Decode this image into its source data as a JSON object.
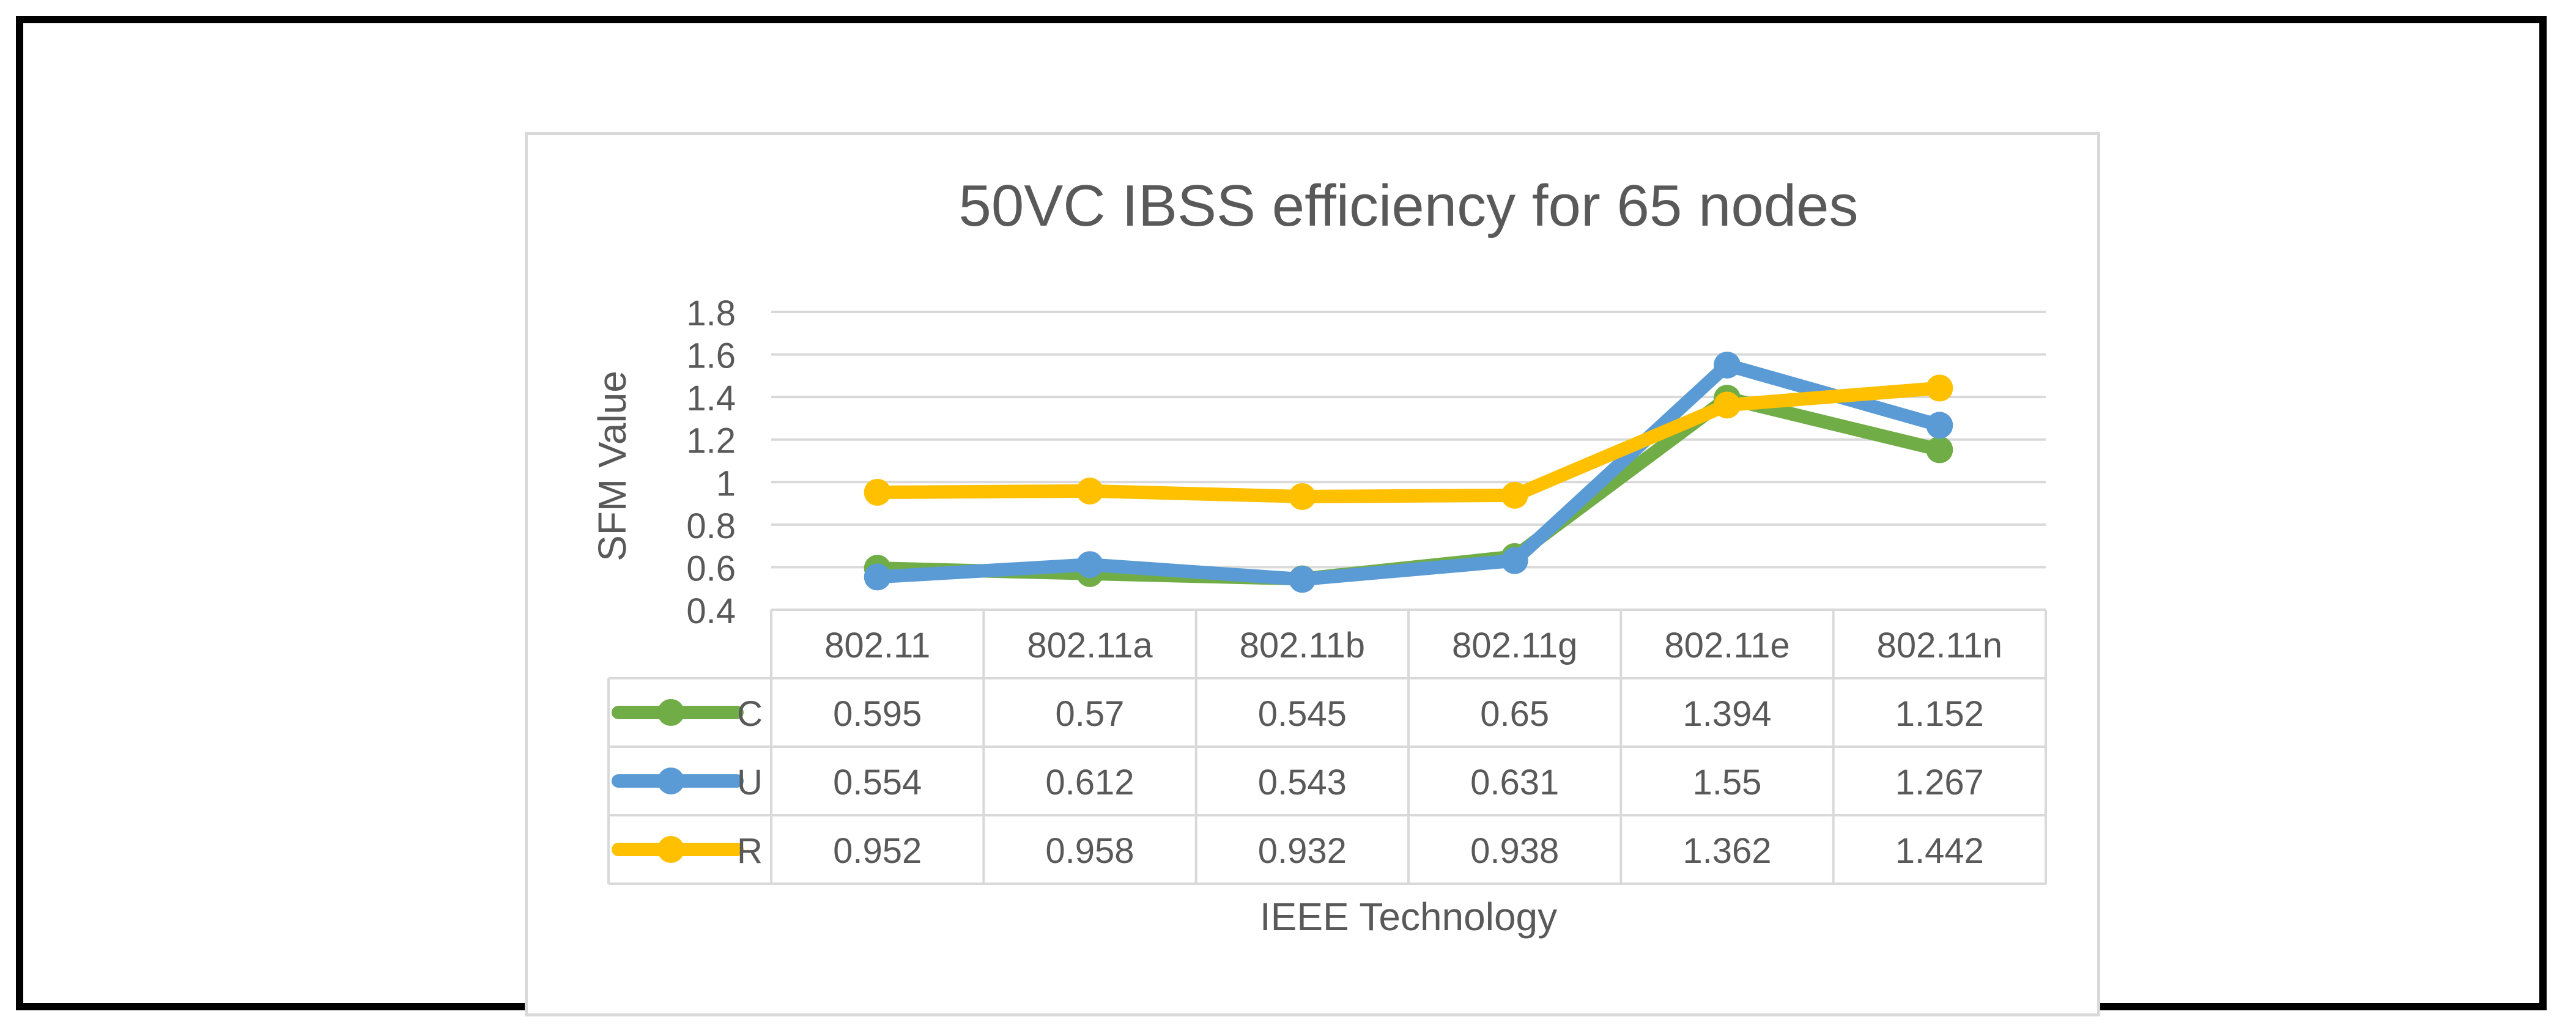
{
  "chart_data": {
    "type": "line",
    "title": "50VC IBSS efficiency for 65 nodes",
    "xlabel": "IEEE Technology",
    "ylabel": "SFM Value",
    "ylim": [
      0.4,
      1.8
    ],
    "y_ticks": [
      "0.4",
      "0.6",
      "0.8",
      "1",
      "1.2",
      "1.4",
      "1.6",
      "1.8"
    ],
    "categories": [
      "802.11",
      "802.11a",
      "802.11b",
      "802.11g",
      "802.11e",
      "802.11n"
    ],
    "series": [
      {
        "name": "C",
        "color": "#70ad47",
        "values": [
          0.595,
          0.57,
          0.545,
          0.65,
          1.394,
          1.152
        ],
        "labels": [
          "0.595",
          "0.57",
          "0.545",
          "0.65",
          "1.394",
          "1.152"
        ]
      },
      {
        "name": "U",
        "color": "#5b9bd5",
        "values": [
          0.554,
          0.612,
          0.543,
          0.631,
          1.55,
          1.267
        ],
        "labels": [
          "0.554",
          "0.612",
          "0.543",
          "0.631",
          "1.55",
          "1.267"
        ]
      },
      {
        "name": "R",
        "color": "#ffc000",
        "values": [
          0.952,
          0.958,
          0.932,
          0.938,
          1.362,
          1.442
        ],
        "labels": [
          "0.952",
          "0.958",
          "0.932",
          "0.938",
          "1.362",
          "1.442"
        ]
      }
    ],
    "grid": true,
    "legend": "data-table"
  }
}
